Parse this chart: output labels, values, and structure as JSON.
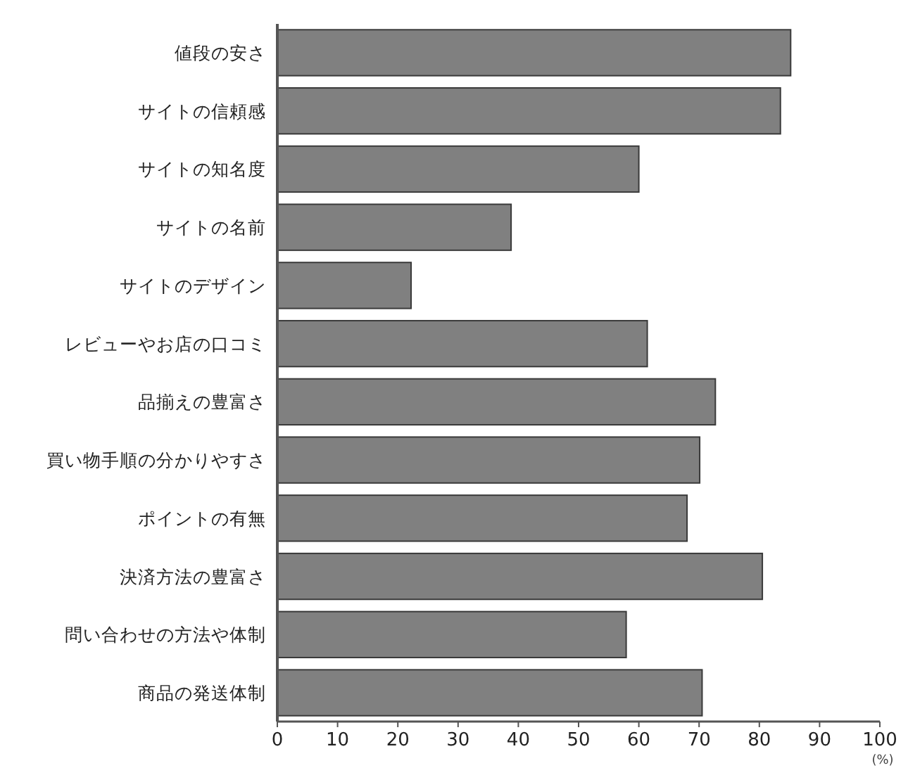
{
  "chart_data": {
    "type": "bar",
    "orientation": "horizontal",
    "categories": [
      "値段の安さ",
      "サイトの信頼感",
      "サイトの知名度",
      "サイトの名前",
      "サイトのデザイン",
      "レビューやお店の口コミ",
      "品揃えの豊富さ",
      "買い物手順の分かりやすさ",
      "ポイントの有無",
      "決済方法の豊富さ",
      "問い合わせの方法や体制",
      "商品の発送体制"
    ],
    "values": [
      85.2,
      83.5,
      60.0,
      38.8,
      22.2,
      61.4,
      72.7,
      70.1,
      68.0,
      80.5,
      57.9,
      70.5
    ],
    "color": "#808080",
    "xlim": [
      0,
      100
    ],
    "xticks": [
      0,
      10,
      20,
      30,
      40,
      50,
      60,
      70,
      80,
      90,
      100
    ],
    "xlabel": "(%)"
  }
}
